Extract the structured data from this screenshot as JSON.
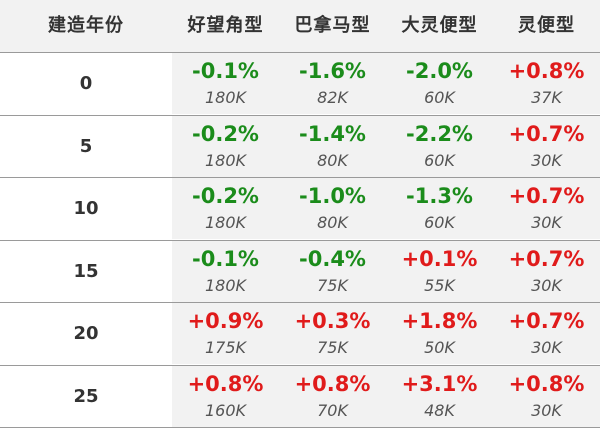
{
  "header": {
    "year_label": "建造年份",
    "columns": [
      "好望角型",
      "巴拿马型",
      "大灵便型",
      "灵便型"
    ]
  },
  "rows": [
    {
      "year": "0",
      "cells": [
        {
          "pct": "-0.1%",
          "sign": "neg",
          "price": "180K"
        },
        {
          "pct": "-1.6%",
          "sign": "neg",
          "price": "82K"
        },
        {
          "pct": "-2.0%",
          "sign": "neg",
          "price": "60K"
        },
        {
          "pct": "+0.8%",
          "sign": "pos",
          "price": "37K"
        }
      ]
    },
    {
      "year": "5",
      "cells": [
        {
          "pct": "-0.2%",
          "sign": "neg",
          "price": "180K"
        },
        {
          "pct": "-1.4%",
          "sign": "neg",
          "price": "80K"
        },
        {
          "pct": "-2.2%",
          "sign": "neg",
          "price": "60K"
        },
        {
          "pct": "+0.7%",
          "sign": "pos",
          "price": "30K"
        }
      ]
    },
    {
      "year": "10",
      "cells": [
        {
          "pct": "-0.2%",
          "sign": "neg",
          "price": "180K"
        },
        {
          "pct": "-1.0%",
          "sign": "neg",
          "price": "80K"
        },
        {
          "pct": "-1.3%",
          "sign": "neg",
          "price": "60K"
        },
        {
          "pct": "+0.7%",
          "sign": "pos",
          "price": "30K"
        }
      ]
    },
    {
      "year": "15",
      "cells": [
        {
          "pct": "-0.1%",
          "sign": "neg",
          "price": "180K"
        },
        {
          "pct": "-0.4%",
          "sign": "neg",
          "price": "75K"
        },
        {
          "pct": "+0.1%",
          "sign": "pos",
          "price": "55K"
        },
        {
          "pct": "+0.7%",
          "sign": "pos",
          "price": "30K"
        }
      ]
    },
    {
      "year": "20",
      "cells": [
        {
          "pct": "+0.9%",
          "sign": "pos",
          "price": "175K"
        },
        {
          "pct": "+0.3%",
          "sign": "pos",
          "price": "75K"
        },
        {
          "pct": "+1.8%",
          "sign": "pos",
          "price": "50K"
        },
        {
          "pct": "+0.7%",
          "sign": "pos",
          "price": "30K"
        }
      ]
    },
    {
      "year": "25",
      "cells": [
        {
          "pct": "+0.8%",
          "sign": "pos",
          "price": "160K"
        },
        {
          "pct": "+0.8%",
          "sign": "pos",
          "price": "70K"
        },
        {
          "pct": "+3.1%",
          "sign": "pos",
          "price": "48K"
        },
        {
          "pct": "+0.8%",
          "sign": "pos",
          "price": "30K"
        }
      ]
    }
  ],
  "colors": {
    "negative": "#1b8c1b",
    "positive": "#e01b1b",
    "shade": "#f2f2f2",
    "rule": "#9a9a9a"
  }
}
